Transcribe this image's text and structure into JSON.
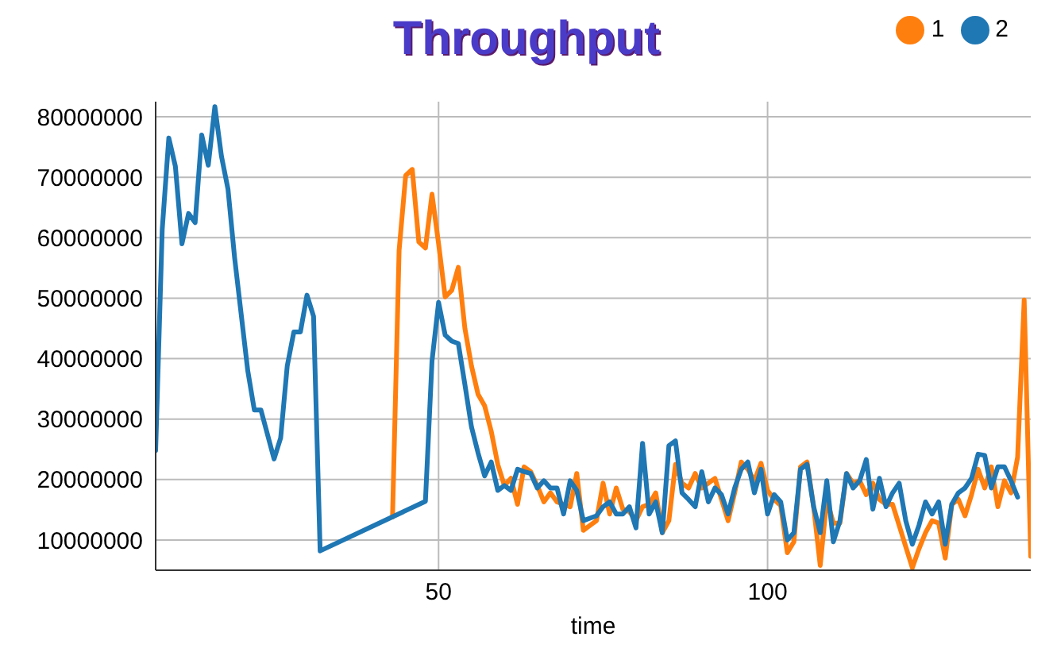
{
  "chart_data": {
    "type": "line",
    "title": "Throughput",
    "xlabel": "time",
    "xlim": [
      7,
      140
    ],
    "xticks": [
      50,
      100
    ],
    "ylim": [
      5000000,
      82500000
    ],
    "yticks": [
      10000000,
      20000000,
      30000000,
      40000000,
      50000000,
      60000000,
      70000000,
      80000000
    ],
    "grid": true,
    "legend": "top right",
    "marker": "none",
    "line_style": "solid",
    "series": [
      {
        "name": "1",
        "color": "#ff7f0e",
        "x": [
          43,
          44,
          45,
          46,
          47,
          48,
          49,
          50,
          51,
          52,
          53,
          54,
          55,
          56,
          57,
          58,
          59,
          60,
          61,
          62,
          63,
          64,
          65,
          66,
          67,
          68,
          69,
          70,
          71,
          72,
          73,
          74,
          75,
          76,
          77,
          78,
          79,
          80,
          81,
          82,
          83,
          84,
          85,
          86,
          87,
          88,
          89,
          90,
          91,
          92,
          93,
          94,
          95,
          96,
          97,
          98,
          99,
          100,
          101,
          102,
          103,
          104,
          105,
          106,
          107,
          108,
          109,
          110,
          111,
          112,
          113,
          114,
          115,
          116,
          117,
          118,
          119,
          120,
          121,
          122,
          123,
          124,
          125,
          126,
          127,
          128,
          129,
          130,
          131,
          132,
          133,
          134,
          135,
          136,
          137,
          138,
          139,
          140
        ],
        "values": [
          13800000,
          57900000,
          70300000,
          71300000,
          59300000,
          58300000,
          67200000,
          59000000,
          50200000,
          51300000,
          55100000,
          45000000,
          38800000,
          34100000,
          32200000,
          28000000,
          22500000,
          19000000,
          20200000,
          15900000,
          22100000,
          21300000,
          19000000,
          16300000,
          17800000,
          16300000,
          15900000,
          15500000,
          21000000,
          11600000,
          12400000,
          13200000,
          19400000,
          14300000,
          18600000,
          15100000,
          14700000,
          13200000,
          15500000,
          15900000,
          17800000,
          11200000,
          13200000,
          22500000,
          19400000,
          18600000,
          21000000,
          18600000,
          19400000,
          20200000,
          16700000,
          13200000,
          17800000,
          22900000,
          21700000,
          19800000,
          22700000,
          18200000,
          16700000,
          15700000,
          7900000,
          9700000,
          22100000,
          22900000,
          15500000,
          5800000,
          16700000,
          12800000,
          12800000,
          21000000,
          19400000,
          19800000,
          17500000,
          19400000,
          16700000,
          15900000,
          15900000,
          12400000,
          8900000,
          5400000,
          8500000,
          11200000,
          13200000,
          12800000,
          7000000,
          15900000,
          16700000,
          14000000,
          17500000,
          21700000,
          18600000,
          22100000,
          15500000,
          19800000,
          17800000,
          23700000,
          49700000,
          7300000
        ]
      },
      {
        "name": "2",
        "color": "#1f77b4",
        "x": [
          7,
          8,
          9,
          10,
          11,
          12,
          13,
          14,
          15,
          16,
          17,
          18,
          19,
          21,
          22,
          23,
          25,
          26,
          27,
          28,
          29,
          30,
          31,
          32,
          48,
          49,
          50,
          51,
          52,
          53,
          54,
          55,
          56,
          57,
          58,
          59,
          60,
          61,
          62,
          63,
          64,
          65,
          66,
          67,
          68,
          69,
          70,
          71,
          72,
          73,
          74,
          75,
          76,
          77,
          78,
          79,
          80,
          81,
          82,
          83,
          84,
          85,
          86,
          87,
          88,
          89,
          90,
          91,
          92,
          93,
          94,
          95,
          96,
          97,
          98,
          99,
          100,
          101,
          102,
          103,
          104,
          105,
          106,
          107,
          108,
          109,
          110,
          111,
          112,
          113,
          114,
          115,
          116,
          117,
          118,
          119,
          120,
          121,
          122,
          123,
          124,
          125,
          126,
          127,
          128,
          129,
          130,
          131,
          132,
          133,
          134,
          135,
          136,
          137,
          138
        ],
        "values": [
          24800000,
          61400000,
          76500000,
          71800000,
          59000000,
          64000000,
          62500000,
          77000000,
          72000000,
          81700000,
          73500000,
          68000000,
          56700000,
          38000000,
          31500000,
          31500000,
          23400000,
          26900000,
          38800000,
          44400000,
          44400000,
          50500000,
          47000000,
          8200000,
          16400000,
          39600000,
          49300000,
          43900000,
          42900000,
          42500000,
          35700000,
          28700000,
          24400000,
          20600000,
          22900000,
          18200000,
          19000000,
          18200000,
          21700000,
          21300000,
          21000000,
          18600000,
          19800000,
          18600000,
          18600000,
          14300000,
          19800000,
          18200000,
          13200000,
          13600000,
          14000000,
          15500000,
          16300000,
          14300000,
          14300000,
          15500000,
          12000000,
          26000000,
          14300000,
          16300000,
          11200000,
          25600000,
          26400000,
          17800000,
          16700000,
          15500000,
          21300000,
          16300000,
          18600000,
          17500000,
          14300000,
          18600000,
          21700000,
          22900000,
          17800000,
          21700000,
          14300000,
          17500000,
          16300000,
          10000000,
          11200000,
          21700000,
          22500000,
          15500000,
          11200000,
          19800000,
          9700000,
          13200000,
          21000000,
          18600000,
          19800000,
          23300000,
          15100000,
          20200000,
          15500000,
          17800000,
          19400000,
          13200000,
          9300000,
          12400000,
          16300000,
          14300000,
          16300000,
          9300000,
          15900000,
          17800000,
          18600000,
          20200000,
          24200000,
          24000000,
          18600000,
          22100000,
          22100000,
          19800000,
          17100000
        ]
      }
    ]
  }
}
